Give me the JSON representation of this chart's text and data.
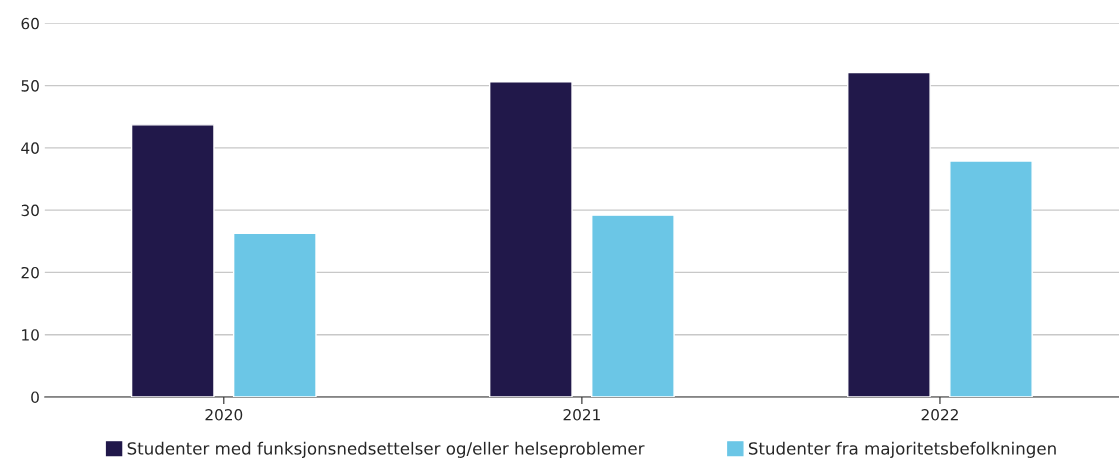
{
  "chart_data": {
    "type": "bar",
    "categories": [
      "2020",
      "2021",
      "2022"
    ],
    "series": [
      {
        "name": "Studenter med funksjonsnedsettelser og/eller helseproblemer",
        "color": "#21184a",
        "values": [
          43.7,
          50.6,
          52.1
        ]
      },
      {
        "name": "Studenter fra majoritetsbefolkningen",
        "color": "#6bc6e6",
        "values": [
          26.3,
          29.2,
          37.9
        ]
      }
    ],
    "ylim": [
      0,
      60
    ],
    "yticks": [
      0,
      10,
      20,
      30,
      40,
      50,
      60
    ],
    "grid": "y",
    "legend": "bottom"
  }
}
